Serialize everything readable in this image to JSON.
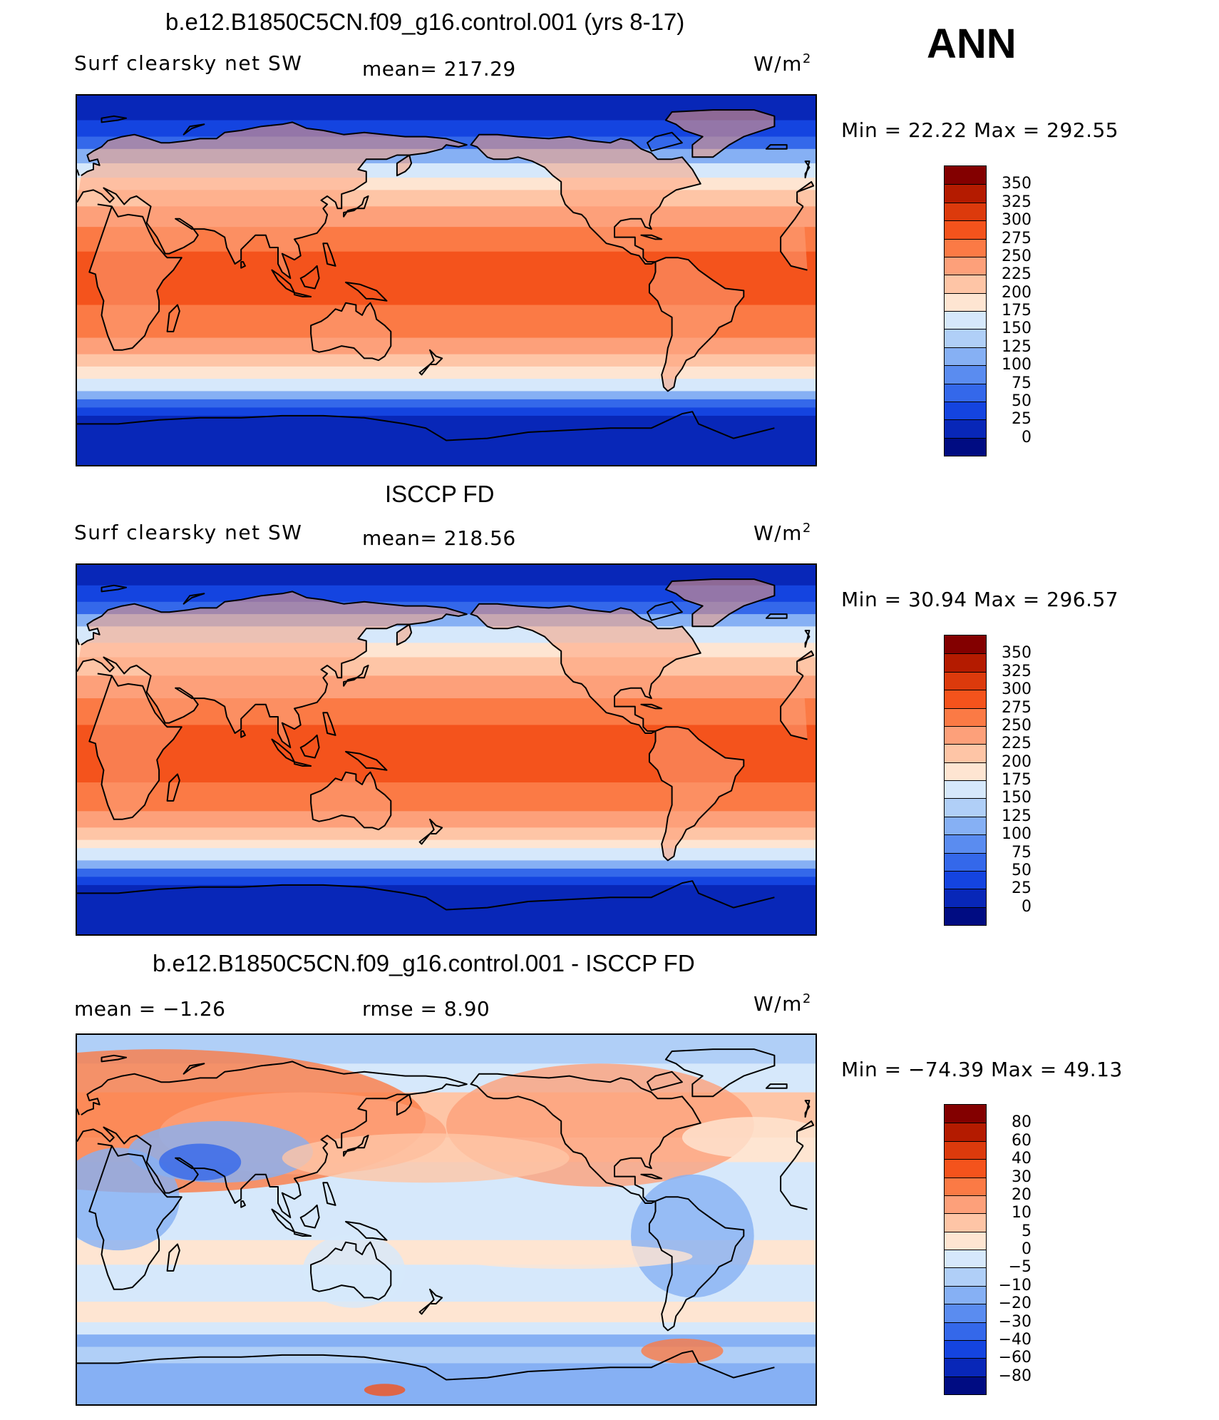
{
  "season": "ANN",
  "panels": [
    {
      "id": "model",
      "title": "b.e12.B1850C5CN.f09_g16.control.001 (yrs 8-17)",
      "variable": "Surf clearsky net SW",
      "stat_text": "mean=  217.29",
      "units": "W/m",
      "units_sup": "2",
      "minmax_text": "Min =   22.22  Max  =  292.55",
      "levels": [
        "350",
        "325",
        "300",
        "275",
        "250",
        "225",
        "200",
        "175",
        "150",
        "125",
        "100",
        "75",
        "50",
        "25",
        "0"
      ],
      "colors": [
        "#830000",
        "#b41b00",
        "#dc3a0c",
        "#f4531c",
        "#fb7a45",
        "#fda07a",
        "#fec5a6",
        "#fee5d2",
        "#d6e8fb",
        "#b0cff7",
        "#86b0f4",
        "#5a8cf0",
        "#3468ea",
        "#1444e0",
        "#0827b8",
        "#000c82"
      ]
    },
    {
      "id": "obs",
      "title": "ISCCP FD",
      "variable": "Surf clearsky net SW",
      "stat_text": "mean=  218.56",
      "units": "W/m",
      "units_sup": "2",
      "minmax_text": "Min =   30.94  Max  =  296.57",
      "levels": [
        "350",
        "325",
        "300",
        "275",
        "250",
        "225",
        "200",
        "175",
        "150",
        "125",
        "100",
        "75",
        "50",
        "25",
        "0"
      ],
      "colors": [
        "#830000",
        "#b41b00",
        "#dc3a0c",
        "#f4531c",
        "#fb7a45",
        "#fda07a",
        "#fec5a6",
        "#fee5d2",
        "#d6e8fb",
        "#b0cff7",
        "#86b0f4",
        "#5a8cf0",
        "#3468ea",
        "#1444e0",
        "#0827b8",
        "#000c82"
      ]
    },
    {
      "id": "diff",
      "title": "b.e12.B1850C5CN.f09_g16.control.001 - ISCCP FD",
      "mean_text": "mean =    −1.26",
      "rmse_text": "rmse =     8.90",
      "units": "W/m",
      "units_sup": "2",
      "minmax_text": "Min  =  −74.39  Max  =    49.13",
      "levels": [
        "80",
        "60",
        "40",
        "30",
        "20",
        "10",
        "5",
        "0",
        "−5",
        "−10",
        "−20",
        "−30",
        "−40",
        "−60",
        "−80"
      ],
      "colors": [
        "#830000",
        "#b41b00",
        "#dc3a0c",
        "#f4531c",
        "#fb7a45",
        "#fda07a",
        "#fec5a6",
        "#fee5d2",
        "#d6e8fb",
        "#b0cff7",
        "#86b0f4",
        "#5a8cf0",
        "#3468ea",
        "#1444e0",
        "#0827b8",
        "#000c82"
      ]
    }
  ],
  "map_fields": {
    "model": {
      "bands_lat_colors": [
        {
          "lat_top": 90,
          "color": "#0827b8"
        },
        {
          "lat_top": 78,
          "color": "#1444e0"
        },
        {
          "lat_top": 70,
          "color": "#3468ea"
        },
        {
          "lat_top": 64,
          "color": "#86b0f4"
        },
        {
          "lat_top": 57,
          "color": "#d6e8fb"
        },
        {
          "lat_top": 50,
          "color": "#fee5d2"
        },
        {
          "lat_top": 44,
          "color": "#fec5a6"
        },
        {
          "lat_top": 36,
          "color": "#fda07a"
        },
        {
          "lat_top": 26,
          "color": "#fb7a45"
        },
        {
          "lat_top": 14,
          "color": "#f4531c"
        },
        {
          "lat_top": -12,
          "color": "#fb7a45"
        },
        {
          "lat_top": -28,
          "color": "#fda07a"
        },
        {
          "lat_top": -36,
          "color": "#fec5a6"
        },
        {
          "lat_top": -42,
          "color": "#fee5d2"
        },
        {
          "lat_top": -48,
          "color": "#d6e8fb"
        },
        {
          "lat_top": -54,
          "color": "#86b0f4"
        },
        {
          "lat_top": -58,
          "color": "#3468ea"
        },
        {
          "lat_top": -62,
          "color": "#1444e0"
        },
        {
          "lat_top": -66,
          "color": "#0827b8"
        }
      ]
    },
    "obs": {
      "bands_lat_colors": [
        {
          "lat_top": 90,
          "color": "#0827b8"
        },
        {
          "lat_top": 80,
          "color": "#1444e0"
        },
        {
          "lat_top": 72,
          "color": "#3468ea"
        },
        {
          "lat_top": 66,
          "color": "#86b0f4"
        },
        {
          "lat_top": 60,
          "color": "#d6e8fb"
        },
        {
          "lat_top": 52,
          "color": "#fee5d2"
        },
        {
          "lat_top": 45,
          "color": "#fec5a6"
        },
        {
          "lat_top": 36,
          "color": "#fda07a"
        },
        {
          "lat_top": 25,
          "color": "#fb7a45"
        },
        {
          "lat_top": 12,
          "color": "#f4531c"
        },
        {
          "lat_top": -16,
          "color": "#fb7a45"
        },
        {
          "lat_top": -30,
          "color": "#fda07a"
        },
        {
          "lat_top": -38,
          "color": "#fec5a6"
        },
        {
          "lat_top": -44,
          "color": "#fee5d2"
        },
        {
          "lat_top": -48,
          "color": "#d6e8fb"
        },
        {
          "lat_top": -54,
          "color": "#86b0f4"
        },
        {
          "lat_top": -58,
          "color": "#3468ea"
        },
        {
          "lat_top": -62,
          "color": "#1444e0"
        },
        {
          "lat_top": -66,
          "color": "#0827b8"
        }
      ]
    },
    "diff": {
      "bands_lat_colors": [
        {
          "lat_top": 90,
          "color": "#b0cff7"
        },
        {
          "lat_top": 76,
          "color": "#d6e8fb"
        },
        {
          "lat_top": 62,
          "color": "#fec5a6"
        },
        {
          "lat_top": 40,
          "color": "#fee5d2"
        },
        {
          "lat_top": 28,
          "color": "#d6e8fb"
        },
        {
          "lat_top": -10,
          "color": "#fee5d2"
        },
        {
          "lat_top": -22,
          "color": "#d6e8fb"
        },
        {
          "lat_top": -40,
          "color": "#fee5d2"
        },
        {
          "lat_top": -50,
          "color": "#d6e8fb"
        },
        {
          "lat_top": -56,
          "color": "#86b0f4"
        },
        {
          "lat_top": -62,
          "color": "#b0cff7"
        },
        {
          "lat_top": -70,
          "color": "#86b0f4"
        }
      ]
    }
  }
}
